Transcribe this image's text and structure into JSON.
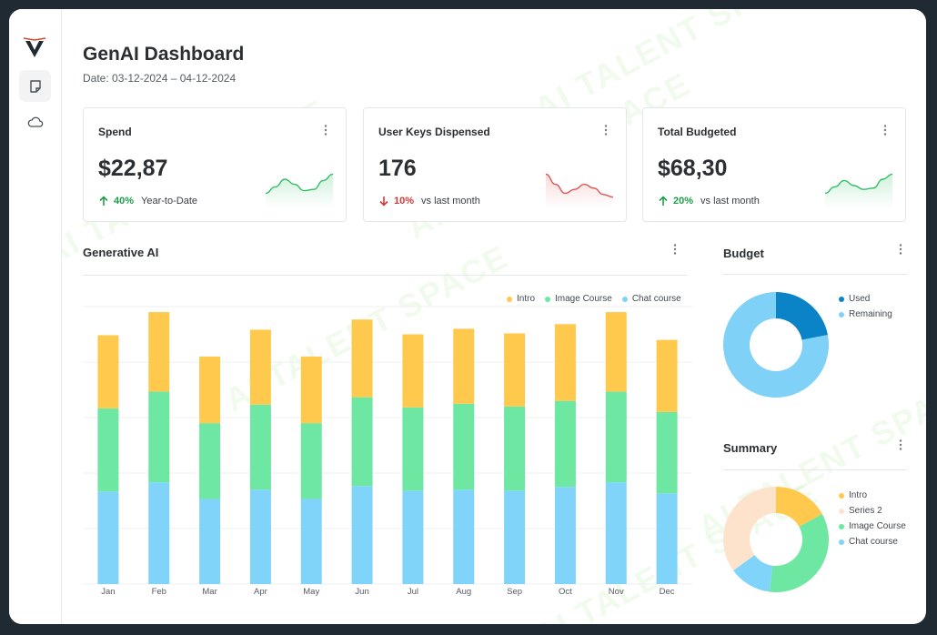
{
  "app": {
    "title": "GenAI Dashboard",
    "date_range": "Date: 03-12-2024 – 04-12-2024"
  },
  "sidebar": {
    "items": [
      {
        "name": "documents-icon"
      },
      {
        "name": "cloud-icon"
      }
    ]
  },
  "kpis": [
    {
      "title": "Spend",
      "value": "$22,87",
      "change": "40%",
      "direction": "up",
      "label": "Year-to-Date",
      "spark": [
        0.2,
        0.45,
        0.75,
        0.55,
        0.3,
        0.35,
        0.7,
        0.95
      ]
    },
    {
      "title": "User Keys Dispensed",
      "value": "176",
      "change": "10%",
      "direction": "down",
      "label": "vs last month",
      "spark": [
        0.95,
        0.55,
        0.2,
        0.35,
        0.55,
        0.4,
        0.15,
        0.05
      ]
    },
    {
      "title": "Total Budgeted",
      "value": "$68,30",
      "change": "20%",
      "direction": "up",
      "label": "vs last month",
      "spark": [
        0.2,
        0.45,
        0.7,
        0.5,
        0.35,
        0.4,
        0.75,
        0.95
      ]
    }
  ],
  "generative_ai": {
    "title": "Generative AI"
  },
  "budget": {
    "title": "Budget",
    "legend": [
      "Used",
      "Remaining"
    ]
  },
  "summary": {
    "title": "Summary",
    "legend": [
      "Intro",
      "Series 2",
      "Image Course",
      "Chat course"
    ]
  },
  "watermark": "AI TALENT SPACE",
  "colors": {
    "intro": "#ffc94d",
    "image_course": "#6ee7a3",
    "chat_course": "#80d4f9",
    "series2": "#fde3cc",
    "used": "#0a84c6",
    "remaining": "#7fd1f8"
  },
  "chart_data": [
    {
      "type": "bar",
      "stacked": true,
      "title": "Generative AI",
      "categories": [
        "Jan",
        "Feb",
        "Mar",
        "Apr",
        "May",
        "Jun",
        "Jul",
        "Aug",
        "Sep",
        "Oct",
        "Nov",
        "Dec"
      ],
      "series": [
        {
          "name": "Chat course",
          "values": [
            100,
            110,
            92,
            102,
            92,
            106,
            101,
            102,
            101,
            105,
            110,
            98
          ]
        },
        {
          "name": "Image Course",
          "values": [
            90,
            98,
            82,
            92,
            82,
            96,
            90,
            93,
            91,
            93,
            98,
            88
          ]
        },
        {
          "name": "Intro",
          "values": [
            79,
            86,
            72,
            81,
            72,
            84,
            79,
            81,
            79,
            83,
            86,
            78
          ]
        }
      ],
      "ylim": [
        0,
        300
      ],
      "legend_labels": [
        "Intro",
        "Image Course",
        "Chat course"
      ]
    },
    {
      "type": "pie",
      "donut": true,
      "title": "Budget",
      "labels": [
        "Used",
        "Remaining"
      ],
      "values": [
        22,
        78
      ]
    },
    {
      "type": "pie",
      "donut": true,
      "title": "Summary",
      "labels": [
        "Intro",
        "Image Course",
        "Chat course",
        "Series 2"
      ],
      "values": [
        17,
        35,
        13,
        35
      ]
    }
  ]
}
